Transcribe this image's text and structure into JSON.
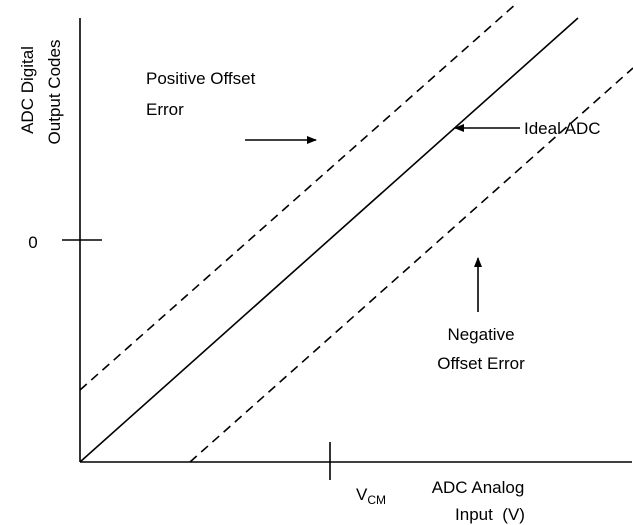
{
  "y_axis_label": [
    "ADC Digital",
    "Output Codes"
  ],
  "zero_label": "0",
  "positive_offset_label": [
    "Positive Offset",
    "Error"
  ],
  "ideal_label": "Ideal ADC",
  "negative_offset_label": [
    "Negative",
    "Offset Error"
  ],
  "vcm_label": {
    "main": "V",
    "sub": "CM"
  },
  "x_axis_label": [
    "ADC Analog",
    "Input  (V)"
  ]
}
